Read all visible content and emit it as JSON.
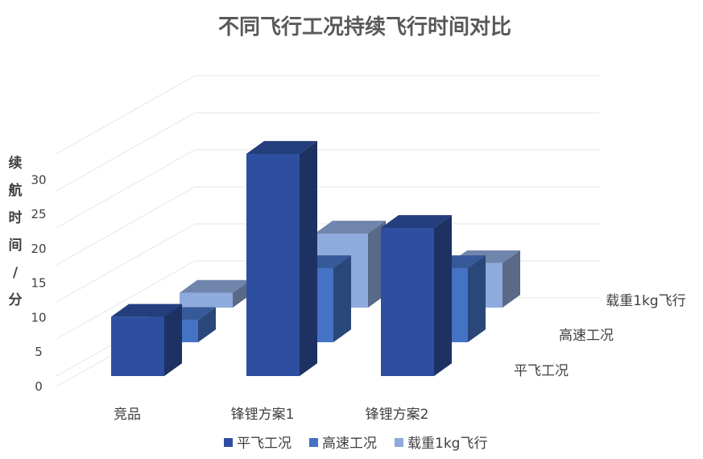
{
  "chart_data": {
    "type": "bar",
    "title": "不同飞行工况持续飞行时间对比",
    "ylabel": "续航时间/分",
    "ylim": [
      0,
      30
    ],
    "yticks": [
      "0",
      "5",
      "10",
      "15",
      "20",
      "25",
      "30"
    ],
    "categories": [
      "竞品",
      "锋锂方案1",
      "锋锂方案2"
    ],
    "series": [
      {
        "name": "平飞工况",
        "values": [
          8,
          30,
          20
        ],
        "color": "#2E4FA0"
      },
      {
        "name": "高速工况",
        "values": [
          3,
          10,
          10
        ],
        "color": "#4472C4"
      },
      {
        "name": "载重1kg飞行",
        "values": [
          2,
          10,
          6
        ],
        "color": "#8FAADC"
      }
    ],
    "depth_labels": [
      "平飞工况",
      "高速工况",
      "载重1kg飞行"
    ],
    "legend": "bottom",
    "grid": true
  }
}
